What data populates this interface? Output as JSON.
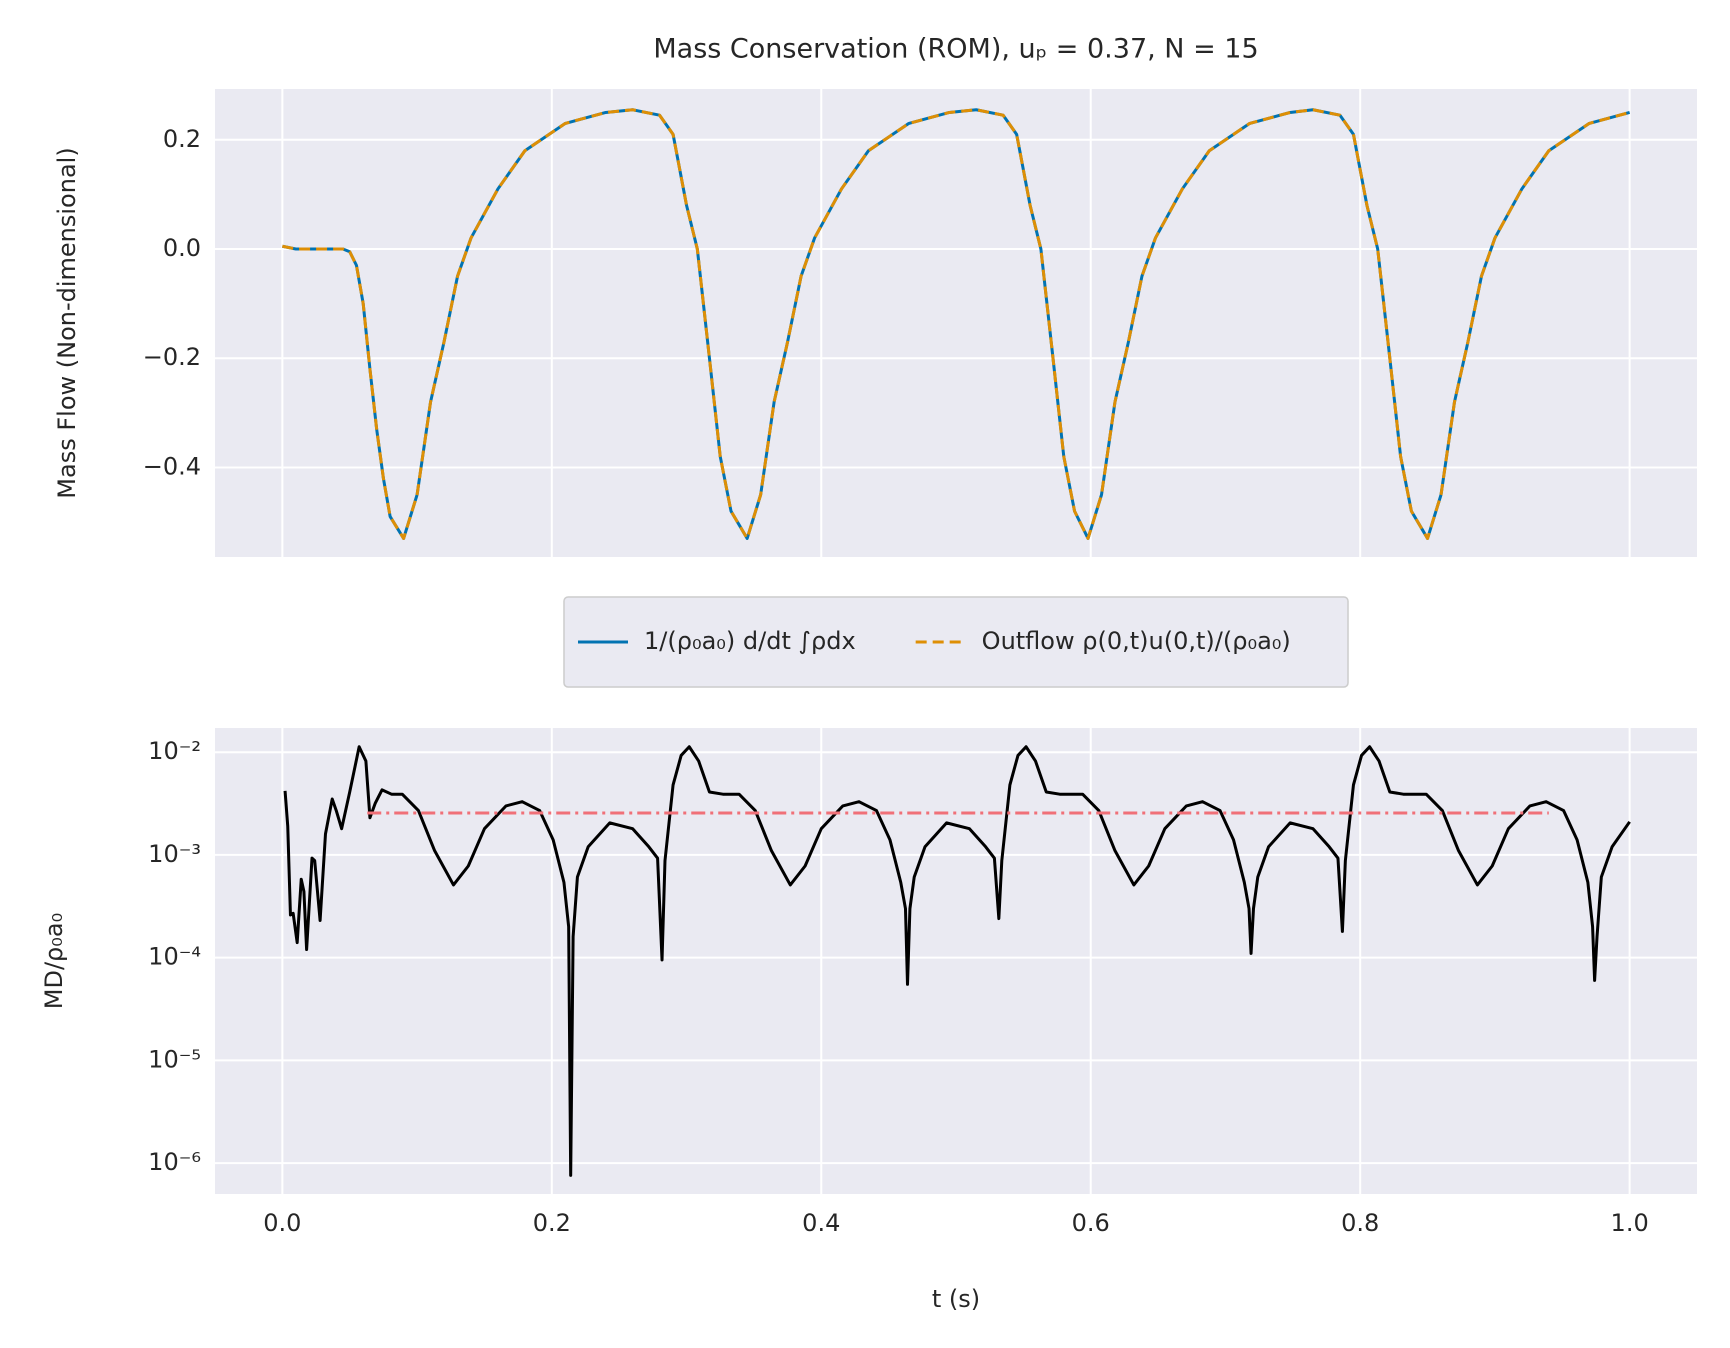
{
  "chart_data": [
    {
      "type": "line",
      "title": "Mass Conservation (ROM), uₚ = 0.37, N = 15",
      "ylabel": "Mass Flow (Non-dimensional)",
      "x": [
        0,
        0.01,
        0.03,
        0.045,
        0.05,
        0.055,
        0.06,
        0.065,
        0.07,
        0.075,
        0.08,
        0.09,
        0.1,
        0.11,
        0.12,
        0.13,
        0.14,
        0.16,
        0.18,
        0.21,
        0.24,
        0.26,
        0.28,
        0.29,
        0.3,
        0.308,
        0.317,
        0.325,
        0.333,
        0.345,
        0.355,
        0.365,
        0.375,
        0.385,
        0.395,
        0.415,
        0.435,
        0.465,
        0.495,
        0.515,
        0.535,
        0.545,
        0.555,
        0.563,
        0.572,
        0.58,
        0.588,
        0.598,
        0.608,
        0.618,
        0.628,
        0.638,
        0.648,
        0.668,
        0.688,
        0.718,
        0.748,
        0.765,
        0.785,
        0.795,
        0.805,
        0.813,
        0.822,
        0.83,
        0.838,
        0.85,
        0.86,
        0.87,
        0.88,
        0.89,
        0.9,
        0.92,
        0.94,
        0.97,
        1.0
      ],
      "series": [
        {
          "name": "1/(ρ₀a₀) d/dt ∫ρdx",
          "color": "#0173b2",
          "linestyle": "solid",
          "values": [
            0.005,
            0,
            0,
            0,
            -0.005,
            -0.03,
            -0.1,
            -0.22,
            -0.33,
            -0.42,
            -0.49,
            -0.53,
            -0.45,
            -0.28,
            -0.17,
            -0.05,
            0.02,
            0.11,
            0.18,
            0.23,
            0.25,
            0.255,
            0.245,
            0.21,
            0.08,
            0,
            -0.2,
            -0.38,
            -0.48,
            -0.53,
            -0.45,
            -0.28,
            -0.17,
            -0.05,
            0.02,
            0.11,
            0.18,
            0.23,
            0.25,
            0.255,
            0.245,
            0.21,
            0.08,
            0,
            -0.2,
            -0.38,
            -0.48,
            -0.53,
            -0.45,
            -0.28,
            -0.17,
            -0.05,
            0.02,
            0.11,
            0.18,
            0.23,
            0.25,
            0.255,
            0.245,
            0.21,
            0.08,
            0,
            -0.2,
            -0.38,
            -0.48,
            -0.53,
            -0.45,
            -0.28,
            -0.17,
            -0.05,
            0.02,
            0.11,
            0.18,
            0.23,
            0.25
          ]
        },
        {
          "name": "Outflow ρ(0,t)u(0,t)/(ρ₀a₀)",
          "color": "#de8f05",
          "linestyle": "dashed",
          "values": [
            0.005,
            0,
            0,
            0,
            -0.005,
            -0.03,
            -0.1,
            -0.22,
            -0.33,
            -0.42,
            -0.49,
            -0.53,
            -0.45,
            -0.28,
            -0.17,
            -0.05,
            0.02,
            0.11,
            0.18,
            0.23,
            0.25,
            0.255,
            0.245,
            0.21,
            0.08,
            0,
            -0.2,
            -0.38,
            -0.48,
            -0.53,
            -0.45,
            -0.28,
            -0.17,
            -0.05,
            0.02,
            0.11,
            0.18,
            0.23,
            0.25,
            0.255,
            0.245,
            0.21,
            0.08,
            0,
            -0.2,
            -0.38,
            -0.48,
            -0.53,
            -0.45,
            -0.28,
            -0.17,
            -0.05,
            0.02,
            0.11,
            0.18,
            0.23,
            0.25,
            0.255,
            0.245,
            0.21,
            0.08,
            0,
            -0.2,
            -0.38,
            -0.48,
            -0.53,
            -0.45,
            -0.28,
            -0.17,
            -0.05,
            0.02,
            0.11,
            0.18,
            0.23,
            0.25
          ]
        }
      ],
      "xlim": [
        -0.05,
        1.05
      ],
      "ylim": [
        -0.564,
        0.293
      ],
      "xticks": [
        0,
        0.2,
        0.4,
        0.6,
        0.8,
        1
      ],
      "yticks": [
        {
          "value": -0.4,
          "label": "−0.4"
        },
        {
          "value": -0.2,
          "label": "−0.2"
        },
        {
          "value": 0,
          "label": "0.0"
        },
        0.2
      ],
      "grid": true,
      "legend": "below"
    },
    {
      "type": "line",
      "xlabel": "t (s)",
      "ylabel": "MD/ρ₀a₀",
      "yscale": "log",
      "x": [
        0.002,
        0.004,
        0.006,
        0.008,
        0.011,
        0.014,
        0.016,
        0.018,
        0.022,
        0.024,
        0.028,
        0.032,
        0.037,
        0.04,
        0.044,
        0.05,
        0.057,
        0.062,
        0.065,
        0.069,
        0.074,
        0.081,
        0.089,
        0.101,
        0.113,
        0.127,
        0.138,
        0.15,
        0.166,
        0.178,
        0.191,
        0.201,
        0.209,
        0.2125,
        0.214,
        0.2158,
        0.219,
        0.227,
        0.243,
        0.26,
        0.272,
        0.2785,
        0.2818,
        0.284,
        0.29,
        0.296,
        0.302,
        0.309,
        0.317,
        0.327,
        0.339,
        0.351,
        0.363,
        0.377,
        0.388,
        0.4,
        0.416,
        0.428,
        0.441,
        0.451,
        0.459,
        0.4625,
        0.464,
        0.4658,
        0.469,
        0.477,
        0.493,
        0.51,
        0.522,
        0.5285,
        0.5318,
        0.534,
        0.54,
        0.546,
        0.552,
        0.559,
        0.567,
        0.577,
        0.594,
        0.606,
        0.618,
        0.632,
        0.643,
        0.655,
        0.671,
        0.683,
        0.696,
        0.706,
        0.714,
        0.7175,
        0.719,
        0.7208,
        0.724,
        0.732,
        0.748,
        0.765,
        0.777,
        0.7835,
        0.7868,
        0.789,
        0.795,
        0.801,
        0.807,
        0.814,
        0.822,
        0.832,
        0.849,
        0.861,
        0.873,
        0.887,
        0.898,
        0.91,
        0.926,
        0.938,
        0.951,
        0.961,
        0.969,
        0.9725,
        0.974,
        0.9758,
        0.979,
        0.987,
        1.0
      ],
      "series": [
        {
          "color": "#000000",
          "linestyle": "solid",
          "values": [
            0.0042,
            0.0019,
            0.00026,
            0.00027,
            0.00014,
            0.00058,
            0.00044,
            0.00012,
            0.00093,
            0.00088,
            0.00023,
            0.0016,
            0.0035,
            0.0027,
            0.0018,
            0.0041,
            0.0113,
            0.0082,
            0.0023,
            0.0032,
            0.0043,
            0.0039,
            0.0039,
            0.0027,
            0.0011,
            0.00051,
            0.00078,
            0.0018,
            0.003,
            0.0033,
            0.0027,
            0.0014,
            0.00054,
            0.0002,
            7.6e-07,
            0.00016,
            0.00061,
            0.0012,
            0.00205,
            0.0018,
            0.0012,
            0.00093,
            9.5e-05,
            0.00088,
            0.0048,
            0.0093,
            0.0113,
            0.0082,
            0.0041,
            0.0039,
            0.0039,
            0.0027,
            0.0011,
            0.00051,
            0.00078,
            0.0018,
            0.003,
            0.0033,
            0.0027,
            0.0014,
            0.00054,
            0.0003,
            5.5e-05,
            0.0003,
            0.00061,
            0.0012,
            0.00205,
            0.0018,
            0.0012,
            0.00093,
            0.00024,
            0.00088,
            0.0048,
            0.0093,
            0.0113,
            0.0082,
            0.0041,
            0.0039,
            0.0039,
            0.0027,
            0.0011,
            0.00051,
            0.00078,
            0.0018,
            0.003,
            0.0033,
            0.0027,
            0.0014,
            0.00054,
            0.0003,
            0.00011,
            0.0003,
            0.00061,
            0.0012,
            0.00205,
            0.0018,
            0.0012,
            0.00093,
            0.00018,
            0.00088,
            0.0048,
            0.0093,
            0.0113,
            0.0082,
            0.0041,
            0.0039,
            0.0039,
            0.0027,
            0.0011,
            0.00051,
            0.00078,
            0.0018,
            0.003,
            0.0033,
            0.0027,
            0.0014,
            0.00054,
            0.0002,
            6e-05,
            0.00016,
            0.00061,
            0.0012,
            0.0021
          ]
        },
        {
          "color": "#f07078",
          "linestyle": "dashdot",
          "x": [
            0.063,
            0.94
          ],
          "values": [
            0.00256,
            0.00256
          ]
        }
      ],
      "xlim": [
        -0.05,
        1.05
      ],
      "ylim": [
        5e-07,
        0.0172
      ],
      "xticks": [
        {
          "value": 0,
          "label": "0.0"
        },
        0.2,
        0.4,
        0.6,
        0.8,
        {
          "value": 1,
          "label": "1.0"
        }
      ],
      "yticks": [
        {
          "value": 1e-06,
          "label": "10⁻⁶"
        },
        {
          "value": 1e-05,
          "label": "10⁻⁵"
        },
        {
          "value": 0.0001,
          "label": "10⁻⁴"
        },
        {
          "value": 0.001,
          "label": "10⁻³"
        },
        {
          "value": 0.01,
          "label": "10⁻²"
        }
      ],
      "grid": true
    }
  ]
}
